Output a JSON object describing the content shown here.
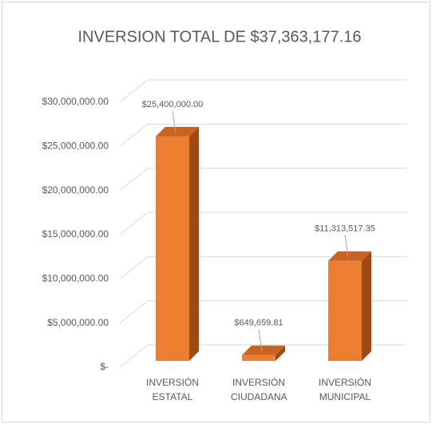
{
  "chart_data": {
    "type": "bar3d",
    "title": "INVERSION TOTAL DE $37,363,177.16",
    "categories": [
      "INVERSIÓN ESTATAL",
      "INVERSIÓN CIUDADANA",
      "INVERSIÓN MUNICIPAL"
    ],
    "values": [
      25400000,
      649659.81,
      11313517.35
    ],
    "value_labels": [
      "$25,400,000.00",
      "$649,659.81",
      "$11,313,517.35"
    ],
    "color": "#ed7d31",
    "ylim": [
      0,
      30000000
    ],
    "yticks": [
      {
        "value": 0,
        "label": "$-"
      },
      {
        "value": 5000000,
        "label": "$5,000,000.00"
      },
      {
        "value": 10000000,
        "label": "$10,000,000.00"
      },
      {
        "value": 15000000,
        "label": "$15,000,000.00"
      },
      {
        "value": 20000000,
        "label": "$20,000,000.00"
      },
      {
        "value": 25000000,
        "label": "$25,000,000.00"
      },
      {
        "value": 30000000,
        "label": "$30,000,000.00"
      }
    ],
    "grid": true
  }
}
